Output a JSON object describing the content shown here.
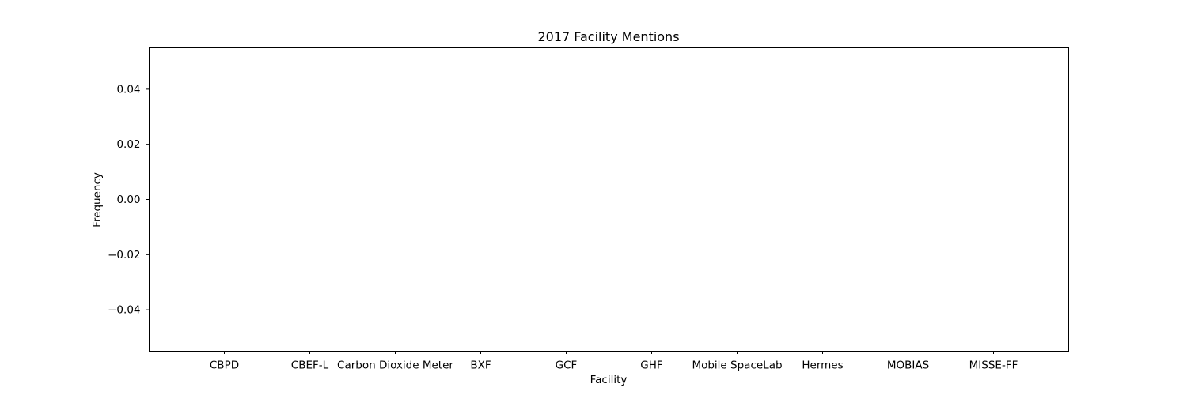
{
  "chart_data": {
    "type": "bar",
    "title": "2017 Facility Mentions",
    "xlabel": "Facility",
    "ylabel": "Frequency",
    "categories": [
      "CBPD",
      "CBEF-L",
      "Carbon Dioxide Meter",
      "BXF",
      "GCF",
      "GHF",
      "Mobile SpaceLab",
      "Hermes",
      "MOBIAS",
      "MISSE-FF"
    ],
    "values": [
      0,
      0,
      0,
      0,
      0,
      0,
      0,
      0,
      0,
      0
    ],
    "ylim": [
      -0.055,
      0.055
    ],
    "yticks": [
      -0.04,
      -0.02,
      0.0,
      0.02,
      0.04
    ],
    "ytick_labels": [
      "−0.04",
      "−0.02",
      "0.00",
      "0.02",
      "0.04"
    ],
    "grid": false,
    "legend": "none"
  }
}
